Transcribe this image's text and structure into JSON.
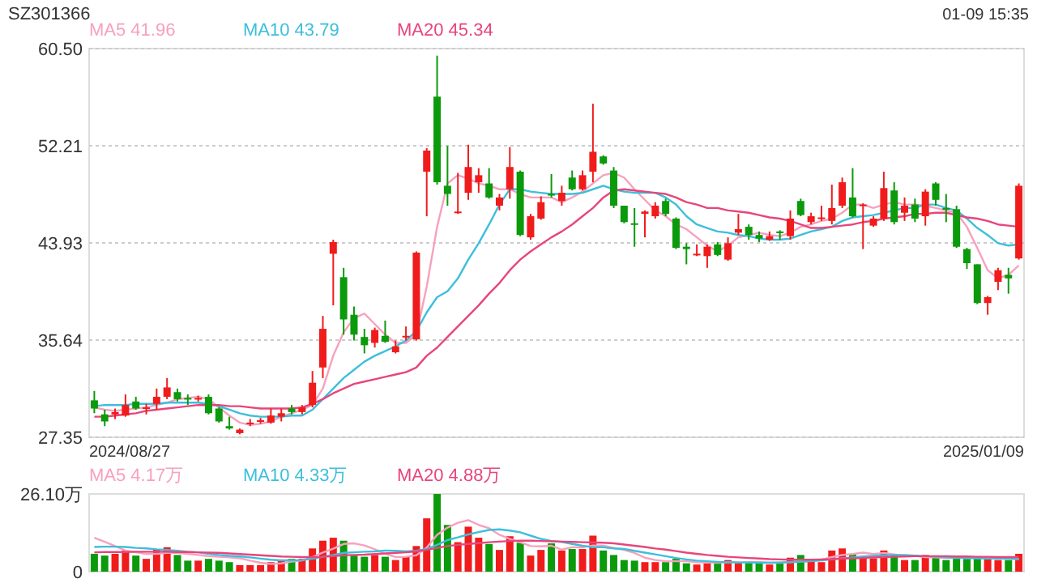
{
  "chart_data": [
    {
      "type": "candlestick",
      "title": "SZ301366",
      "annotations": [
        "01-09 15:35",
        "2024/08/27",
        "2025/01/09"
      ],
      "legend": "top",
      "grid": "y",
      "categories": [
        null,
        null,
        null,
        null,
        null,
        null,
        null,
        null,
        null,
        null,
        null,
        null,
        null,
        null,
        null,
        null,
        null,
        null,
        null,
        null,
        null,
        null,
        null,
        null,
        null,
        null,
        null,
        null,
        null,
        null,
        null,
        null,
        null,
        null,
        null,
        null,
        null,
        null,
        null,
        null,
        null,
        null,
        null,
        null,
        null,
        null,
        null,
        null,
        null,
        null,
        null,
        null,
        null,
        null,
        null,
        null,
        null,
        null,
        null,
        null,
        null,
        null,
        null,
        null,
        null,
        null,
        null,
        null,
        null,
        null,
        null,
        null,
        null,
        null,
        null,
        null,
        null,
        null,
        null,
        null,
        null,
        null,
        null,
        null,
        null,
        null,
        null,
        null,
        null,
        null
      ],
      "ohlc": [
        [
          30.5,
          31.3,
          29.4,
          29.8
        ],
        [
          29.3,
          29.7,
          28.3,
          28.7
        ],
        [
          29.3,
          29.8,
          28.9,
          29.5
        ],
        [
          29.2,
          31.0,
          29.1,
          30.1
        ],
        [
          30.4,
          30.8,
          29.7,
          29.8
        ],
        [
          29.8,
          30.2,
          29.3,
          29.9
        ],
        [
          30.2,
          31.5,
          29.7,
          30.8
        ],
        [
          30.8,
          32.4,
          30.6,
          31.6
        ],
        [
          31.2,
          31.5,
          30.4,
          30.6
        ],
        [
          30.7,
          31.0,
          30.1,
          30.6
        ],
        [
          30.6,
          30.9,
          30.4,
          30.7
        ],
        [
          30.8,
          31.0,
          29.3,
          29.4
        ],
        [
          29.8,
          29.9,
          28.6,
          28.7
        ],
        [
          28.3,
          29.1,
          28.0,
          28.1
        ],
        [
          27.7,
          28.1,
          27.6,
          28.0
        ],
        [
          28.5,
          28.9,
          28.3,
          28.6
        ],
        [
          28.7,
          29.0,
          28.5,
          28.8
        ],
        [
          28.6,
          29.8,
          28.5,
          29.2
        ],
        [
          29.1,
          29.8,
          28.7,
          29.4
        ],
        [
          29.8,
          30.1,
          29.3,
          29.5
        ],
        [
          29.5,
          30.1,
          29.3,
          29.9
        ],
        [
          30.1,
          33.0,
          29.9,
          32.0
        ],
        [
          33.3,
          37.7,
          32.4,
          36.6
        ],
        [
          43.0,
          44.2,
          38.6,
          44.0
        ],
        [
          41.0,
          41.8,
          36.1,
          37.4
        ],
        [
          37.8,
          38.5,
          35.6,
          36.1
        ],
        [
          35.9,
          36.6,
          34.5,
          35.2
        ],
        [
          35.4,
          36.7,
          35.0,
          36.5
        ],
        [
          36.0,
          37.3,
          35.4,
          35.5
        ],
        [
          34.6,
          35.6,
          34.5,
          35.1
        ],
        [
          35.9,
          36.8,
          35.6,
          36.0
        ],
        [
          35.7,
          43.2,
          35.6,
          43.1
        ],
        [
          50.0,
          52.0,
          46.2,
          51.8
        ],
        [
          56.4,
          59.9,
          48.9,
          49.1
        ],
        [
          48.8,
          52.2,
          47.1,
          48.1
        ],
        [
          46.5,
          49.9,
          46.4,
          46.6
        ],
        [
          48.2,
          52.3,
          47.6,
          50.4
        ],
        [
          49.1,
          50.3,
          48.2,
          49.7
        ],
        [
          49.0,
          50.3,
          47.7,
          47.8
        ],
        [
          47.1,
          48.1,
          46.7,
          47.8
        ],
        [
          48.5,
          52.1,
          47.7,
          50.4
        ],
        [
          50.0,
          50.1,
          44.5,
          44.6
        ],
        [
          44.4,
          46.4,
          44.2,
          46.2
        ],
        [
          46.0,
          47.9,
          45.9,
          47.4
        ],
        [
          48.1,
          49.8,
          47.8,
          48.0
        ],
        [
          47.5,
          48.8,
          47.1,
          48.2
        ],
        [
          49.5,
          50.1,
          48.4,
          48.5
        ],
        [
          48.5,
          50.1,
          48.4,
          49.7
        ],
        [
          50.0,
          55.8,
          49.1,
          51.7
        ],
        [
          51.3,
          51.4,
          50.6,
          50.7
        ],
        [
          50.1,
          50.4,
          46.9,
          47.1
        ],
        [
          47.1,
          47.1,
          45.6,
          45.7
        ],
        [
          45.6,
          46.9,
          43.6,
          45.5
        ],
        [
          46.4,
          46.7,
          44.4,
          46.6
        ],
        [
          46.2,
          47.4,
          46.0,
          47.1
        ],
        [
          47.5,
          47.7,
          46.2,
          46.4
        ],
        [
          46.0,
          46.1,
          43.4,
          43.5
        ],
        [
          43.6,
          43.9,
          42.1,
          43.4
        ],
        [
          42.9,
          43.8,
          42.8,
          43.0
        ],
        [
          42.8,
          43.8,
          41.8,
          43.6
        ],
        [
          43.8,
          44.0,
          42.8,
          42.9
        ],
        [
          42.5,
          44.4,
          42.4,
          43.9
        ],
        [
          44.8,
          46.4,
          44.6,
          45.1
        ],
        [
          45.3,
          45.5,
          44.2,
          44.6
        ],
        [
          44.6,
          44.9,
          44.0,
          44.3
        ],
        [
          44.2,
          44.9,
          44.1,
          44.5
        ],
        [
          44.9,
          45.0,
          44.2,
          44.8
        ],
        [
          44.5,
          46.7,
          44.2,
          46.0
        ],
        [
          47.5,
          47.7,
          46.2,
          46.3
        ],
        [
          45.7,
          46.5,
          45.5,
          46.2
        ],
        [
          46.0,
          47.1,
          45.8,
          46.1
        ],
        [
          45.8,
          48.9,
          45.5,
          46.9
        ],
        [
          47.1,
          49.5,
          46.9,
          49.1
        ],
        [
          47.8,
          50.3,
          46.1,
          46.2
        ],
        [
          47.1,
          47.3,
          43.4,
          47.2
        ],
        [
          45.4,
          46.2,
          45.3,
          46.0
        ],
        [
          46.0,
          50.0,
          45.8,
          48.6
        ],
        [
          48.4,
          49.1,
          45.5,
          45.7
        ],
        [
          46.5,
          47.8,
          45.8,
          47.1
        ],
        [
          47.2,
          47.7,
          45.7,
          46.0
        ],
        [
          46.2,
          48.5,
          45.4,
          48.3
        ],
        [
          49.0,
          49.1,
          47.1,
          47.6
        ],
        [
          46.9,
          48.1,
          45.7,
          46.8
        ],
        [
          46.8,
          47.1,
          43.5,
          43.6
        ],
        [
          43.4,
          43.5,
          41.7,
          42.2
        ],
        [
          42.1,
          42.1,
          38.7,
          38.8
        ],
        [
          38.8,
          39.4,
          37.8,
          39.3
        ],
        [
          40.6,
          41.8,
          39.9,
          41.6
        ],
        [
          41.2,
          41.8,
          39.6,
          40.9
        ],
        [
          42.6,
          49.0,
          42.5,
          48.8
        ]
      ],
      "series": [
        {
          "type": "line",
          "name": "MA5 41.96",
          "color": "#f7a1bd",
          "values": [
            29.9,
            29.7,
            29.6,
            29.7,
            29.8,
            29.9,
            30.1,
            30.3,
            30.6,
            30.7,
            30.8,
            30.6,
            29.9,
            29.2,
            28.6,
            28.4,
            28.5,
            28.7,
            29.1,
            29.4,
            29.7,
            30.1,
            31.5,
            34.3,
            36.3,
            37.5,
            37.9,
            37.0,
            36.1,
            35.4,
            35.4,
            36.1,
            40.2,
            45.3,
            49.0,
            49.7,
            49.4,
            49.0,
            48.8,
            48.5,
            48.5,
            48.1,
            47.8,
            47.8,
            47.8,
            47.4,
            47.8,
            48.3,
            49.0,
            49.7,
            49.9,
            49.5,
            48.5,
            47.6,
            46.7,
            46.2,
            45.5,
            45.1,
            44.4,
            43.7,
            43.2,
            43.7,
            44.4,
            44.6,
            44.8,
            44.6,
            44.5,
            44.8,
            45.3,
            45.5,
            45.8,
            46.0,
            46.5,
            47.2,
            47.2,
            46.9,
            47.2,
            47.4,
            47.2,
            47.2,
            47.1,
            46.9,
            46.7,
            46.5,
            45.3,
            43.5,
            41.6,
            40.9,
            41.2,
            42.0
          ]
        },
        {
          "type": "line",
          "name": "MA10 43.79",
          "color": "#3dbfdb",
          "values": [
            30.0,
            30.1,
            30.1,
            30.1,
            30.2,
            30.2,
            30.2,
            30.3,
            30.3,
            30.3,
            30.3,
            30.2,
            30.0,
            29.7,
            29.4,
            29.2,
            29.1,
            29.1,
            29.1,
            29.2,
            29.2,
            29.7,
            30.6,
            31.5,
            32.4,
            33.1,
            33.8,
            34.3,
            34.7,
            35.1,
            35.6,
            36.4,
            38.0,
            39.3,
            39.8,
            40.9,
            42.5,
            43.9,
            45.5,
            47.2,
            48.5,
            48.5,
            48.3,
            48.2,
            48.1,
            48.1,
            48.1,
            48.2,
            48.5,
            48.8,
            48.5,
            48.3,
            48.2,
            48.2,
            48.2,
            47.8,
            47.2,
            46.2,
            45.5,
            45.2,
            44.9,
            44.8,
            44.6,
            44.5,
            44.3,
            44.2,
            44.2,
            44.3,
            44.6,
            44.9,
            45.1,
            45.3,
            45.8,
            46.1,
            46.2,
            46.3,
            46.5,
            46.7,
            46.9,
            46.9,
            47.2,
            47.2,
            46.9,
            46.7,
            46.0,
            45.2,
            44.6,
            43.9,
            43.7,
            43.8
          ]
        },
        {
          "type": "line",
          "name": "MA20 45.34",
          "color": "#e8457a",
          "values": [
            29.1,
            29.1,
            29.2,
            29.3,
            29.4,
            29.6,
            29.7,
            29.8,
            29.9,
            30.0,
            30.1,
            30.1,
            30.1,
            30.0,
            30.0,
            29.9,
            29.8,
            29.8,
            29.8,
            29.8,
            29.9,
            30.2,
            30.6,
            31.1,
            31.5,
            31.9,
            32.1,
            32.3,
            32.5,
            32.7,
            32.9,
            33.3,
            34.3,
            35.0,
            35.9,
            36.8,
            37.7,
            38.6,
            39.6,
            40.5,
            41.6,
            42.5,
            43.2,
            43.8,
            44.4,
            44.9,
            45.5,
            46.2,
            46.9,
            47.8,
            48.4,
            48.5,
            48.4,
            48.3,
            48.2,
            48.1,
            47.8,
            47.4,
            47.2,
            46.9,
            46.9,
            46.7,
            46.6,
            46.5,
            46.3,
            46.1,
            46.0,
            45.8,
            45.5,
            45.2,
            45.2,
            45.3,
            45.4,
            45.5,
            45.7,
            45.8,
            46.0,
            46.1,
            46.2,
            46.4,
            46.4,
            46.5,
            46.5,
            46.3,
            46.1,
            46.0,
            45.8,
            45.5,
            45.4,
            45.3
          ]
        }
      ],
      "ylim": [
        27.35,
        60.5
      ],
      "yticks": [
        27.35,
        35.64,
        43.93,
        52.21,
        {
          "value": 60.5,
          "label": "60.50"
        }
      ]
    },
    {
      "type": "bar",
      "legend": "top",
      "tick_labels": "y",
      "categories": [
        null,
        null,
        null,
        null,
        null,
        null,
        null,
        null,
        null,
        null,
        null,
        null,
        null,
        null,
        null,
        null,
        null,
        null,
        null,
        null,
        null,
        null,
        null,
        null,
        null,
        null,
        null,
        null,
        null,
        null,
        null,
        null,
        null,
        null,
        null,
        null,
        null,
        null,
        null,
        null,
        null,
        null,
        null,
        null,
        null,
        null,
        null,
        null,
        null,
        null,
        null,
        null,
        null,
        null,
        null,
        null,
        null,
        null,
        null,
        null,
        null,
        null,
        null,
        null,
        null,
        null,
        null,
        null,
        null,
        null,
        null,
        null,
        null,
        null,
        null,
        null,
        null,
        null,
        null,
        null,
        null,
        null,
        null,
        null,
        null,
        null,
        null,
        null,
        null,
        null
      ],
      "series": [
        {
          "type": "bar",
          "values": [
            6.0,
            5.4,
            6.0,
            7.1,
            5.4,
            4.3,
            7.6,
            8.2,
            5.6,
            3.7,
            3.7,
            4.3,
            3.7,
            3.2,
            2.2,
            2.2,
            2.2,
            3.2,
            3.9,
            4.3,
            4.3,
            7.8,
            10.4,
            11.4,
            10.4,
            5.4,
            5.0,
            5.6,
            5.0,
            3.9,
            5.0,
            8.6,
            17.9,
            26.1,
            15.7,
            9.9,
            15.1,
            11.4,
            9.3,
            7.3,
            11.9,
            9.7,
            5.4,
            7.3,
            9.5,
            7.1,
            7.6,
            7.6,
            12.1,
            7.1,
            5.6,
            3.9,
            3.7,
            3.2,
            3.2,
            3.2,
            4.3,
            2.8,
            2.4,
            2.8,
            2.8,
            3.9,
            3.2,
            3.2,
            2.8,
            2.4,
            2.8,
            4.7,
            5.6,
            3.5,
            3.2,
            7.1,
            7.8,
            6.0,
            5.0,
            4.5,
            7.1,
            5.6,
            3.9,
            3.9,
            5.6,
            5.0,
            3.9,
            5.0,
            4.3,
            5.0,
            4.3,
            3.9,
            3.9,
            6.0
          ],
          "colors": [
            "#0b9a0b",
            "#0b9a0b",
            "#f01c1c",
            "#f01c1c",
            "#0b9a0b",
            "#f01c1c",
            "#f01c1c",
            "#f01c1c",
            "#0b9a0b",
            "#0b9a0b",
            "#f01c1c",
            "#0b9a0b",
            "#0b9a0b",
            "#0b9a0b",
            "#f01c1c",
            "#f01c1c",
            "#f01c1c",
            "#f01c1c",
            "#f01c1c",
            "#0b9a0b",
            "#f01c1c",
            "#f01c1c",
            "#f01c1c",
            "#f01c1c",
            "#0b9a0b",
            "#0b9a0b",
            "#0b9a0b",
            "#f01c1c",
            "#0b9a0b",
            "#f01c1c",
            "#f01c1c",
            "#f01c1c",
            "#f01c1c",
            "#0b9a0b",
            "#0b9a0b",
            "#f01c1c",
            "#f01c1c",
            "#f01c1c",
            "#0b9a0b",
            "#f01c1c",
            "#f01c1c",
            "#0b9a0b",
            "#f01c1c",
            "#f01c1c",
            "#0b9a0b",
            "#f01c1c",
            "#0b9a0b",
            "#f01c1c",
            "#f01c1c",
            "#0b9a0b",
            "#0b9a0b",
            "#0b9a0b",
            "#0b9a0b",
            "#f01c1c",
            "#f01c1c",
            "#0b9a0b",
            "#0b9a0b",
            "#0b9a0b",
            "#f01c1c",
            "#f01c1c",
            "#0b9a0b",
            "#f01c1c",
            "#f01c1c",
            "#0b9a0b",
            "#0b9a0b",
            "#f01c1c",
            "#0b9a0b",
            "#f01c1c",
            "#0b9a0b",
            "#f01c1c",
            "#f01c1c",
            "#f01c1c",
            "#f01c1c",
            "#0b9a0b",
            "#f01c1c",
            "#f01c1c",
            "#f01c1c",
            "#0b9a0b",
            "#f01c1c",
            "#0b9a0b",
            "#f01c1c",
            "#0b9a0b",
            "#0b9a0b",
            "#0b9a0b",
            "#0b9a0b",
            "#0b9a0b",
            "#f01c1c",
            "#f01c1c",
            "#0b9a0b",
            "#f01c1c"
          ]
        },
        {
          "type": "line",
          "name": "MA5 4.17万",
          "color": "#f7a1bd",
          "values": [
            11.4,
            10.0,
            8.6,
            7.1,
            6.5,
            6.0,
            6.0,
            6.3,
            6.3,
            6.0,
            5.6,
            5.2,
            5.0,
            4.8,
            4.5,
            3.7,
            3.0,
            2.6,
            2.8,
            3.4,
            3.8,
            4.9,
            6.4,
            7.7,
            9.3,
            9.5,
            8.8,
            7.5,
            6.0,
            4.9,
            5.0,
            5.5,
            8.1,
            12.4,
            14.8,
            16.4,
            17.3,
            15.7,
            14.6,
            12.4,
            11.0,
            9.9,
            8.6,
            8.5,
            8.7,
            7.4,
            8.2,
            8.2,
            8.8,
            8.7,
            8.0,
            7.3,
            6.3,
            4.7,
            3.9,
            3.5,
            3.5,
            3.5,
            3.2,
            3.1,
            3.0,
            3.2,
            3.1,
            3.2,
            3.2,
            3.0,
            3.0,
            3.2,
            3.6,
            3.8,
            4.0,
            4.9,
            5.6,
            5.9,
            6.4,
            5.9,
            6.3,
            5.8,
            5.3,
            5.3,
            4.9,
            4.8,
            4.6,
            4.7,
            4.6,
            4.6,
            4.5,
            4.5,
            4.3,
            4.2
          ]
        },
        {
          "type": "line",
          "name": "MA10 4.33万",
          "color": "#3dbfdb",
          "values": [
            8.3,
            8.4,
            8.4,
            8.3,
            8.0,
            7.8,
            7.5,
            7.3,
            7.0,
            6.7,
            6.5,
            6.0,
            5.6,
            5.3,
            5.1,
            4.8,
            4.4,
            4.0,
            3.8,
            3.8,
            3.9,
            4.3,
            5.0,
            5.6,
            6.3,
            6.5,
            6.7,
            6.8,
            7.1,
            7.0,
            6.8,
            7.0,
            7.6,
            9.0,
            10.6,
            11.5,
            12.5,
            13.3,
            14.0,
            14.2,
            13.8,
            13.2,
            12.1,
            11.0,
            10.3,
            10.0,
            9.3,
            8.7,
            8.2,
            8.2,
            7.8,
            7.6,
            7.0,
            6.4,
            5.8,
            5.2,
            4.6,
            4.1,
            3.7,
            3.5,
            3.3,
            3.2,
            3.1,
            3.1,
            3.0,
            3.0,
            3.1,
            3.2,
            3.3,
            3.5,
            3.8,
            4.1,
            4.5,
            4.8,
            5.1,
            5.3,
            5.5,
            5.6,
            5.6,
            5.4,
            5.2,
            5.0,
            4.8,
            4.7,
            4.6,
            4.5,
            4.5,
            4.4,
            4.4,
            4.3
          ]
        },
        {
          "type": "line",
          "name": "MA20 4.88万",
          "color": "#e8457a",
          "values": [
            6.5,
            6.6,
            6.6,
            6.6,
            6.7,
            6.7,
            6.7,
            6.7,
            6.6,
            6.6,
            6.5,
            6.4,
            6.3,
            6.1,
            5.9,
            5.7,
            5.5,
            5.3,
            5.1,
            5.0,
            4.9,
            4.9,
            5.0,
            5.2,
            5.5,
            5.6,
            5.7,
            5.9,
            6.1,
            6.3,
            6.5,
            6.8,
            7.3,
            8.0,
            8.6,
            9.0,
            9.3,
            9.6,
            9.9,
            10.1,
            10.3,
            10.4,
            10.4,
            10.3,
            10.2,
            10.1,
            10.0,
            9.9,
            9.8,
            9.7,
            9.5,
            9.1,
            8.7,
            8.3,
            7.8,
            7.4,
            6.9,
            6.4,
            6.0,
            5.6,
            5.3,
            5.0,
            4.8,
            4.6,
            4.4,
            4.2,
            4.1,
            4.0,
            4.0,
            4.0,
            4.1,
            4.2,
            4.4,
            4.5,
            4.6,
            4.8,
            4.9,
            5.0,
            5.1,
            5.2,
            5.2,
            5.2,
            5.2,
            5.1,
            5.1,
            5.0,
            5.0,
            4.9,
            4.9,
            4.9
          ]
        }
      ],
      "ylim": [
        0,
        26.1
      ],
      "yticks": [
        0,
        {
          "value": 26.1,
          "label": "26.10万"
        }
      ]
    }
  ]
}
